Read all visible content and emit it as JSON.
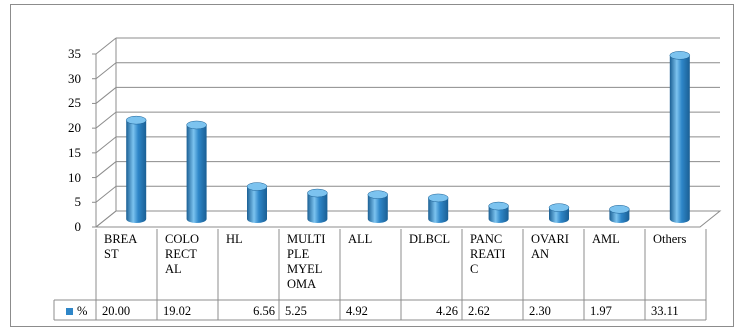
{
  "chart_data": {
    "type": "bar",
    "categories": [
      "BREA ST",
      "COLO RECT AL",
      "HL",
      "MULTI PLE MYEL OMA",
      "ALL",
      "DLBCL",
      "PANC REATI C",
      "OVARI AN",
      "AML",
      "Others"
    ],
    "category_lines": [
      [
        "BREA",
        "ST"
      ],
      [
        "COLO",
        "RECT",
        "AL"
      ],
      [
        "HL"
      ],
      [
        "MULTI",
        "PLE",
        "MYEL",
        "OMA"
      ],
      [
        "ALL"
      ],
      [
        "DLBCL"
      ],
      [
        "PANC",
        "REATI",
        "C"
      ],
      [
        "OVARI",
        "AN"
      ],
      [
        "AML"
      ],
      [
        "Others"
      ]
    ],
    "series": [
      {
        "name": "%",
        "values": [
          20.0,
          19.02,
          6.56,
          5.25,
          4.92,
          4.26,
          2.62,
          2.3,
          1.97,
          33.11
        ],
        "labels": [
          "20.00",
          "19.02",
          "6.56",
          "5.25",
          "4.92",
          "4.26",
          "2.62",
          "2.30",
          "1.97",
          "33.11"
        ]
      }
    ],
    "ylim": [
      0,
      35
    ],
    "yticks": [
      "0",
      "5",
      "10",
      "15",
      "20",
      "25",
      "30",
      "35"
    ],
    "grid": true,
    "data_table": true,
    "style": "3d-cylinder",
    "colors": {
      "bar": "#2e86c8",
      "bar_light": "#7cc3ef",
      "bar_dark": "#1a5f94",
      "grid": "#8c8c8c"
    }
  }
}
